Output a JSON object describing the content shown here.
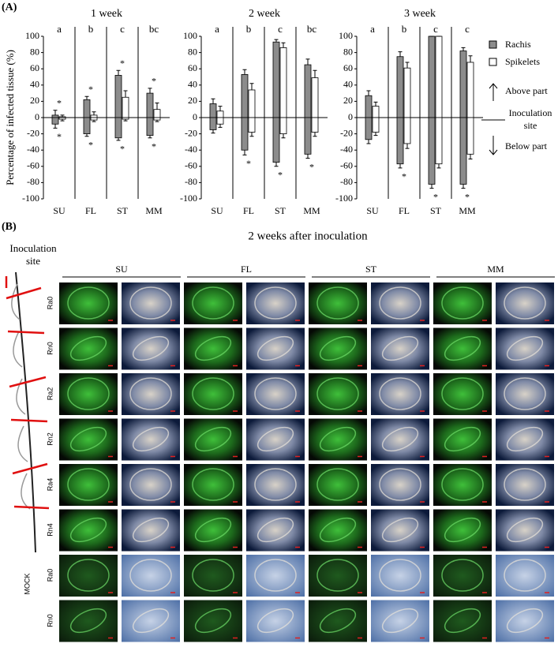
{
  "panel_a_label": "(A)",
  "chart_data": [
    {
      "type": "bar",
      "title": "1 week",
      "ylabel": "Percentage of infected tissue (%)",
      "categories": [
        "SU",
        "FL",
        "ST",
        "MM"
      ],
      "letters": [
        "a",
        "b",
        "c",
        "bc"
      ],
      "ylim": [
        -100,
        100
      ],
      "yticks": [
        -100,
        -80,
        -60,
        -40,
        -20,
        0,
        20,
        40,
        60,
        80,
        100
      ],
      "series": [
        {
          "name": "Rachis",
          "color": "#8c8c8c",
          "values": [
            3,
            22,
            52,
            30
          ],
          "errors": [
            6,
            4,
            6,
            6
          ],
          "below": [
            -8,
            -20,
            -25,
            -22
          ],
          "below_errors": [
            5,
            3,
            3,
            3
          ]
        },
        {
          "name": "Spikelets",
          "color": "#ffffff",
          "values": [
            1,
            3,
            25,
            10
          ],
          "errors": [
            2,
            4,
            8,
            8
          ],
          "below": [
            -2,
            -3,
            -2,
            -3
          ],
          "below_errors": [
            2,
            2,
            2,
            2
          ]
        }
      ],
      "sig_label": "*",
      "sig_above": [
        0,
        1,
        2,
        3
      ],
      "sig_below": [
        0,
        1,
        2,
        3
      ]
    },
    {
      "type": "bar",
      "title": "2 week",
      "categories": [
        "SU",
        "FL",
        "ST",
        "MM"
      ],
      "letters": [
        "a",
        "b",
        "c",
        "bc"
      ],
      "ylim": [
        -100,
        100
      ],
      "yticks": [
        -100,
        -80,
        -60,
        -40,
        -20,
        0,
        20,
        40,
        60,
        80,
        100
      ],
      "series": [
        {
          "name": "Rachis",
          "color": "#8c8c8c",
          "values": [
            17,
            53,
            93,
            65
          ],
          "errors": [
            6,
            6,
            3,
            7
          ],
          "below": [
            -15,
            -40,
            -55,
            -45
          ],
          "below_errors": [
            4,
            6,
            5,
            5
          ]
        },
        {
          "name": "Spikelets",
          "color": "#ffffff",
          "values": [
            8,
            34,
            86,
            49
          ],
          "errors": [
            6,
            8,
            6,
            9
          ],
          "below": [
            -8,
            -18,
            -20,
            -18
          ],
          "below_errors": [
            4,
            5,
            5,
            5
          ]
        }
      ],
      "sig_label": "*",
      "sig_above": [],
      "sig_below": [
        1,
        2,
        3
      ]
    },
    {
      "type": "bar",
      "title": "3 week",
      "categories": [
        "SU",
        "FL",
        "ST",
        "MM"
      ],
      "letters": [
        "a",
        "b",
        "c",
        "c"
      ],
      "ylim": [
        -100,
        100
      ],
      "yticks": [
        -100,
        -80,
        -60,
        -40,
        -20,
        0,
        20,
        40,
        60,
        80,
        100
      ],
      "series": [
        {
          "name": "Rachis",
          "color": "#8c8c8c",
          "values": [
            27,
            75,
            100,
            82
          ],
          "errors": [
            6,
            6,
            0,
            4
          ],
          "below": [
            -27,
            -57,
            -82,
            -82
          ],
          "below_errors": [
            5,
            5,
            5,
            5
          ]
        },
        {
          "name": "Spikelets",
          "color": "#ffffff",
          "values": [
            14,
            61,
            100,
            68
          ],
          "errors": [
            5,
            7,
            0,
            8
          ],
          "below": [
            -18,
            -32,
            -57,
            -45
          ],
          "below_errors": [
            4,
            6,
            5,
            6
          ]
        }
      ],
      "sig_label": "*",
      "sig_above": [],
      "sig_below": [
        1,
        2,
        3
      ]
    }
  ],
  "legend_notes": {
    "above": "Above part",
    "site": [
      "Inoculation",
      "site"
    ],
    "below": "Below part"
  },
  "panel_b": {
    "label": "(B)",
    "title": "2 weeks after inoculation",
    "site": [
      "Inoculation",
      "site"
    ],
    "columns": [
      "SU",
      "FL",
      "ST",
      "MM"
    ],
    "rows": [
      "Ra0",
      "Rn0",
      "Ra2",
      "Rn2",
      "Ra4",
      "Rn4"
    ],
    "mock": "MOCK",
    "mock_rows": [
      "Ra0",
      "Rn0"
    ]
  }
}
